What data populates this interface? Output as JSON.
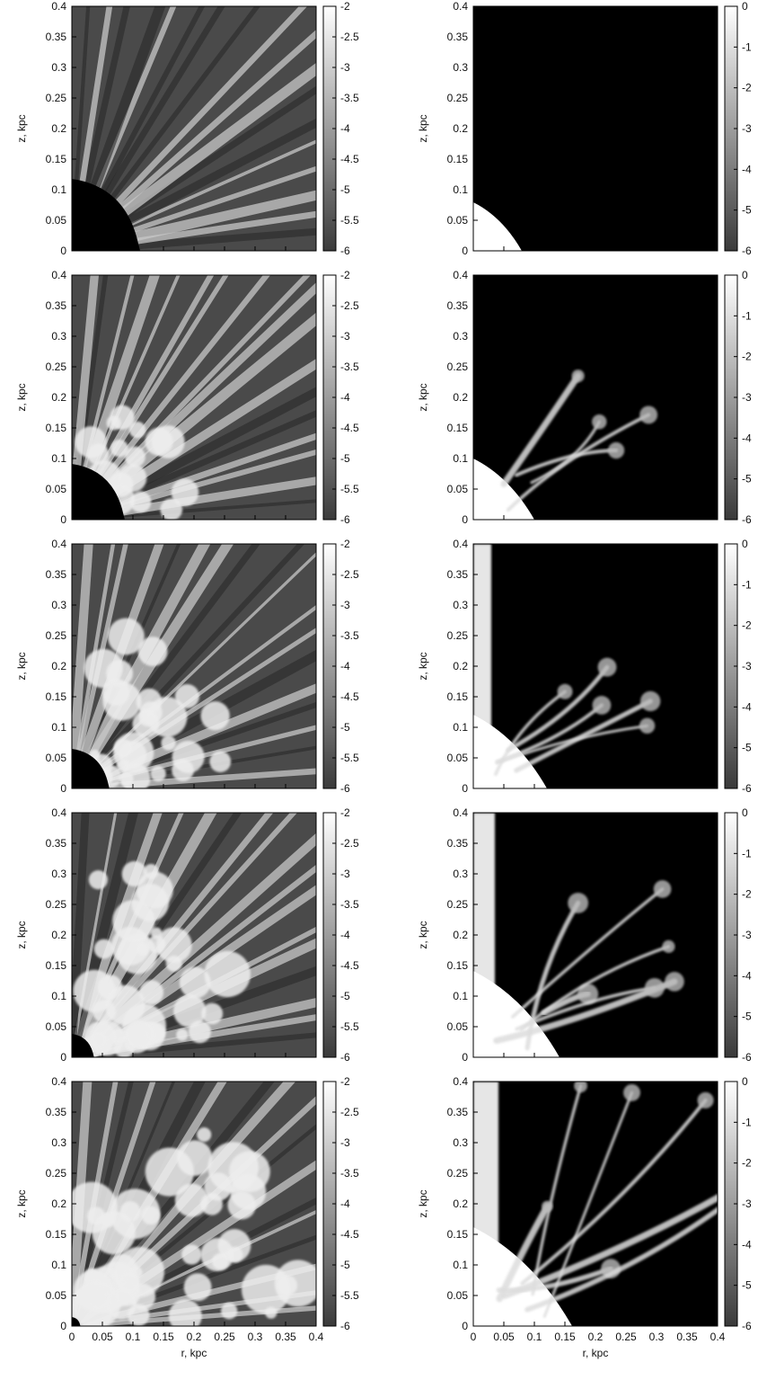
{
  "figure": {
    "description_colormap": "grayscale",
    "columns": 2,
    "rows": 5
  },
  "chart_data": [
    {
      "type": "heatmap",
      "column": "left",
      "row": 1,
      "xlabel": "",
      "ylabel": "z, kpc",
      "xlim": [
        0,
        0.4
      ],
      "ylim": [
        0,
        0.4
      ],
      "xticks": [],
      "yticks": [
        "0",
        "0.05",
        "0.1",
        "0.15",
        "0.2",
        "0.25",
        "0.3",
        "0.35",
        "0.4"
      ],
      "colorbar": {
        "range": [
          -6,
          -2
        ],
        "ticks": [
          "-2",
          "-2.5",
          "-3",
          "-3.5",
          "-4",
          "-4.5",
          "-5",
          "-5.5",
          "-6"
        ]
      }
    },
    {
      "type": "heatmap",
      "column": "right",
      "row": 1,
      "xlabel": "",
      "ylabel": "z, kpc",
      "xlim": [
        0,
        0.4
      ],
      "ylim": [
        0,
        0.4
      ],
      "xticks": [],
      "yticks": [
        "0",
        "0.05",
        "0.1",
        "0.15",
        "0.2",
        "0.25",
        "0.3",
        "0.35",
        "0.4"
      ],
      "colorbar": {
        "range": [
          -6,
          0
        ],
        "ticks": [
          "0",
          "-1",
          "-2",
          "-3",
          "-4",
          "-5",
          "-6"
        ]
      }
    },
    {
      "type": "heatmap",
      "column": "left",
      "row": 2,
      "xlabel": "",
      "ylabel": "z, kpc",
      "xlim": [
        0,
        0.4
      ],
      "ylim": [
        0,
        0.4
      ],
      "xticks": [],
      "yticks": [
        "0",
        "0.05",
        "0.1",
        "0.15",
        "0.2",
        "0.25",
        "0.3",
        "0.35",
        "0.4"
      ],
      "colorbar": {
        "range": [
          -6,
          -2
        ],
        "ticks": [
          "-2",
          "-2.5",
          "-3",
          "-3.5",
          "-4",
          "-4.5",
          "-5",
          "-5.5",
          "-6"
        ]
      }
    },
    {
      "type": "heatmap",
      "column": "right",
      "row": 2,
      "xlabel": "",
      "ylabel": "z, kpc",
      "xlim": [
        0,
        0.4
      ],
      "ylim": [
        0,
        0.4
      ],
      "xticks": [],
      "yticks": [
        "0",
        "0.05",
        "0.1",
        "0.15",
        "0.2",
        "0.25",
        "0.3",
        "0.35",
        "0.4"
      ],
      "colorbar": {
        "range": [
          -6,
          0
        ],
        "ticks": [
          "0",
          "-1",
          "-2",
          "-3",
          "-4",
          "-5",
          "-6"
        ]
      }
    },
    {
      "type": "heatmap",
      "column": "left",
      "row": 3,
      "xlabel": "",
      "ylabel": "z, kpc",
      "xlim": [
        0,
        0.4
      ],
      "ylim": [
        0,
        0.4
      ],
      "xticks": [],
      "yticks": [
        "0",
        "0.05",
        "0.1",
        "0.15",
        "0.2",
        "0.25",
        "0.3",
        "0.35",
        "0.4"
      ],
      "colorbar": {
        "range": [
          -6,
          -2
        ],
        "ticks": [
          "-2",
          "-2.5",
          "-3",
          "-3.5",
          "-4",
          "-4.5",
          "-5",
          "-5.5",
          "-6"
        ]
      }
    },
    {
      "type": "heatmap",
      "column": "right",
      "row": 3,
      "xlabel": "",
      "ylabel": "z, kpc",
      "xlim": [
        0,
        0.4
      ],
      "ylim": [
        0,
        0.4
      ],
      "xticks": [],
      "yticks": [
        "0",
        "0.05",
        "0.1",
        "0.15",
        "0.2",
        "0.25",
        "0.3",
        "0.35",
        "0.4"
      ],
      "colorbar": {
        "range": [
          -6,
          0
        ],
        "ticks": [
          "0",
          "-1",
          "-2",
          "-3",
          "-4",
          "-5",
          "-6"
        ]
      }
    },
    {
      "type": "heatmap",
      "column": "left",
      "row": 4,
      "xlabel": "",
      "ylabel": "z, kpc",
      "xlim": [
        0,
        0.4
      ],
      "ylim": [
        0,
        0.4
      ],
      "xticks": [],
      "yticks": [
        "0",
        "0.05",
        "0.1",
        "0.15",
        "0.2",
        "0.25",
        "0.3",
        "0.35",
        "0.4"
      ],
      "colorbar": {
        "range": [
          -6,
          -2
        ],
        "ticks": [
          "-2",
          "-2.5",
          "-3",
          "-3.5",
          "-4",
          "-4.5",
          "-5",
          "-5.5",
          "-6"
        ]
      }
    },
    {
      "type": "heatmap",
      "column": "right",
      "row": 4,
      "xlabel": "",
      "ylabel": "z, kpc",
      "xlim": [
        0,
        0.4
      ],
      "ylim": [
        0,
        0.4
      ],
      "xticks": [],
      "yticks": [
        "0",
        "0.05",
        "0.1",
        "0.15",
        "0.2",
        "0.25",
        "0.3",
        "0.35",
        "0.4"
      ],
      "colorbar": {
        "range": [
          -6,
          0
        ],
        "ticks": [
          "0",
          "-1",
          "-2",
          "-3",
          "-4",
          "-5",
          "-6"
        ]
      }
    },
    {
      "type": "heatmap",
      "column": "left",
      "row": 5,
      "xlabel": "r, kpc",
      "ylabel": "z, kpc",
      "xlim": [
        0,
        0.4
      ],
      "ylim": [
        0,
        0.4
      ],
      "xticks": [
        "0",
        "0.05",
        "0.1",
        "0.15",
        "0.2",
        "0.25",
        "0.3",
        "0.35",
        "0.4"
      ],
      "yticks": [
        "0",
        "0.05",
        "0.1",
        "0.15",
        "0.2",
        "0.25",
        "0.3",
        "0.35",
        "0.4"
      ],
      "colorbar": {
        "range": [
          -6,
          -2
        ],
        "ticks": [
          "-2",
          "-2.5",
          "-3",
          "-3.5",
          "-4",
          "-4.5",
          "-5",
          "-5.5",
          "-6"
        ]
      }
    },
    {
      "type": "heatmap",
      "column": "right",
      "row": 5,
      "xlabel": "r, kpc",
      "ylabel": "z, kpc",
      "xlim": [
        0,
        0.4
      ],
      "ylim": [
        0,
        0.4
      ],
      "xticks": [
        "0",
        "0.05",
        "0.1",
        "0.15",
        "0.2",
        "0.25",
        "0.3",
        "0.35",
        "0.4"
      ],
      "yticks": [
        "0",
        "0.05",
        "0.1",
        "0.15",
        "0.2",
        "0.25",
        "0.3",
        "0.35",
        "0.4"
      ],
      "colorbar": {
        "range": [
          -6,
          0
        ],
        "ticks": [
          "0",
          "-1",
          "-2",
          "-3",
          "-4",
          "-5",
          "-6"
        ]
      }
    }
  ],
  "colors": {
    "left_background": "#4a4a4a",
    "right_background": "#000000",
    "cloud": "#eeeeee",
    "dark_region": "#000000",
    "streak_light": "#c8c8c8",
    "streak_dark": "#2a2a2a"
  }
}
